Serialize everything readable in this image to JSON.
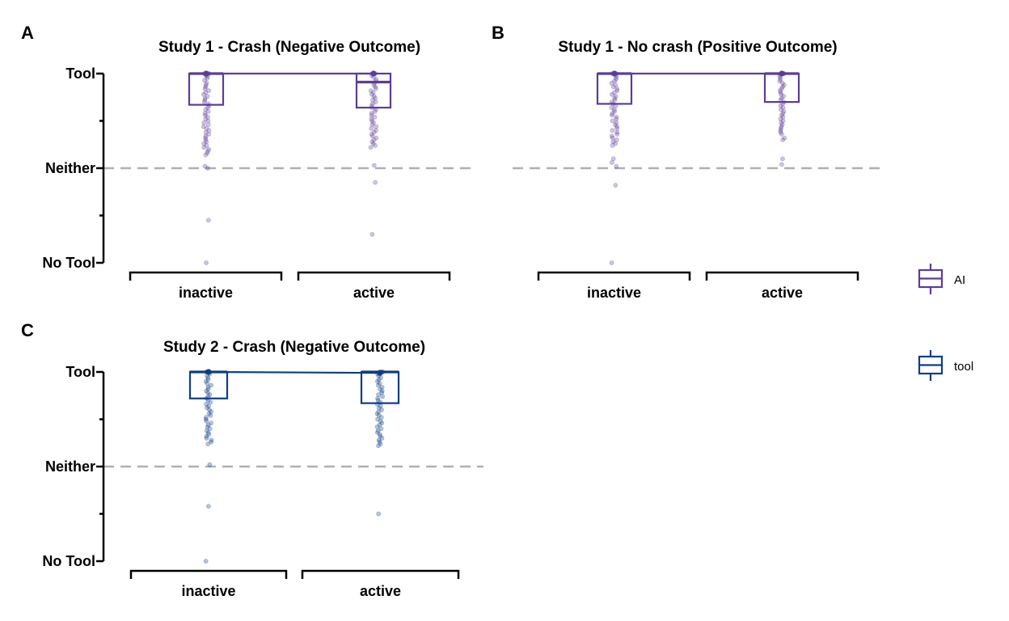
{
  "colors": {
    "AI": "#5B3C99",
    "tool": "#0E3D86",
    "reference": "#B0B0B0",
    "axis": "#000000"
  },
  "legend": [
    {
      "name": "AI",
      "color": "#5B3C99"
    },
    {
      "name": "tool",
      "color": "#0E3D86"
    }
  ],
  "chart_data": [
    {
      "panel": "A",
      "type": "box",
      "title": "Study 1 - Crash (Negative Outcome)",
      "group": "AI",
      "categories": [
        "inactive",
        "active"
      ],
      "y_tick_labels": [
        "No Tool",
        "Neither",
        "Tool"
      ],
      "ylim": [
        -1,
        1
      ],
      "reference_line": 0,
      "boxes": [
        {
          "category": "inactive",
          "q1": 0.67,
          "median": 1.0,
          "q3": 1.0,
          "mean": 1.0
        },
        {
          "category": "active",
          "q1": 0.64,
          "median": 0.91,
          "q3": 1.0,
          "mean": 1.0
        }
      ],
      "points": {
        "inactive": [
          1,
          1,
          1,
          1,
          0.98,
          0.97,
          0.95,
          0.93,
          0.9,
          0.88,
          0.86,
          0.84,
          0.82,
          0.8,
          0.78,
          0.76,
          0.74,
          0.72,
          0.7,
          0.68,
          0.66,
          0.64,
          0.62,
          0.6,
          0.58,
          0.56,
          0.54,
          0.52,
          0.5,
          0.48,
          0.46,
          0.44,
          0.42,
          0.4,
          0.38,
          0.36,
          0.34,
          0.32,
          0.3,
          0.28,
          0.26,
          0.24,
          0.22,
          0.2,
          0.18,
          0.16,
          0.14,
          0.02,
          0,
          -0.55,
          -1
        ],
        "active": [
          1,
          1,
          1,
          1,
          0.98,
          0.96,
          0.94,
          0.92,
          0.9,
          0.88,
          0.86,
          0.84,
          0.82,
          0.8,
          0.78,
          0.76,
          0.74,
          0.72,
          0.7,
          0.68,
          0.66,
          0.64,
          0.62,
          0.6,
          0.58,
          0.56,
          0.54,
          0.52,
          0.5,
          0.48,
          0.46,
          0.44,
          0.42,
          0.4,
          0.38,
          0.36,
          0.34,
          0.32,
          0.3,
          0.28,
          0.26,
          0.24,
          0.22,
          0.03,
          -0.15,
          -0.7
        ]
      }
    },
    {
      "panel": "B",
      "type": "box",
      "title": "Study 1 - No crash (Positive Outcome)",
      "group": "AI",
      "categories": [
        "inactive",
        "active"
      ],
      "y_tick_labels": [],
      "ylim": [
        -1,
        1
      ],
      "reference_line": 0,
      "boxes": [
        {
          "category": "inactive",
          "q1": 0.68,
          "median": 1.0,
          "q3": 1.0,
          "mean": 1.0
        },
        {
          "category": "active",
          "q1": 0.7,
          "median": 1.0,
          "q3": 1.0,
          "mean": 1.0
        }
      ],
      "points": {
        "inactive": [
          1,
          1,
          1,
          1,
          0.98,
          0.96,
          0.94,
          0.92,
          0.9,
          0.88,
          0.86,
          0.84,
          0.82,
          0.8,
          0.78,
          0.76,
          0.74,
          0.72,
          0.7,
          0.68,
          0.66,
          0.64,
          0.62,
          0.6,
          0.58,
          0.56,
          0.54,
          0.52,
          0.5,
          0.48,
          0.46,
          0.44,
          0.42,
          0.4,
          0.38,
          0.36,
          0.34,
          0.32,
          0.3,
          0.28,
          0.26,
          0.24,
          0.1,
          0.06,
          0.02,
          -0.18,
          -1
        ],
        "active": [
          1,
          1,
          1,
          1,
          0.98,
          0.96,
          0.94,
          0.92,
          0.9,
          0.88,
          0.86,
          0.84,
          0.82,
          0.8,
          0.78,
          0.76,
          0.74,
          0.72,
          0.7,
          0.68,
          0.66,
          0.64,
          0.62,
          0.6,
          0.58,
          0.56,
          0.54,
          0.52,
          0.5,
          0.48,
          0.46,
          0.44,
          0.42,
          0.4,
          0.38,
          0.36,
          0.32,
          0.3,
          0.1,
          0.04
        ]
      }
    },
    {
      "panel": "C",
      "type": "box",
      "title": "Study 2 - Crash (Negative Outcome)",
      "group": "tool",
      "categories": [
        "inactive",
        "active"
      ],
      "y_tick_labels": [
        "No Tool",
        "Neither",
        "Tool"
      ],
      "ylim": [
        -1,
        1
      ],
      "reference_line": 0,
      "boxes": [
        {
          "category": "inactive",
          "q1": 0.72,
          "median": 1.0,
          "q3": 1.0,
          "mean": 1.0
        },
        {
          "category": "active",
          "q1": 0.67,
          "median": 1.0,
          "q3": 1.0,
          "mean": 0.99
        }
      ],
      "points": {
        "inactive": [
          1,
          1,
          1,
          1,
          0.98,
          0.96,
          0.94,
          0.92,
          0.9,
          0.88,
          0.86,
          0.84,
          0.82,
          0.8,
          0.78,
          0.76,
          0.74,
          0.72,
          0.7,
          0.68,
          0.66,
          0.64,
          0.62,
          0.6,
          0.58,
          0.56,
          0.54,
          0.52,
          0.5,
          0.48,
          0.46,
          0.44,
          0.42,
          0.4,
          0.38,
          0.36,
          0.34,
          0.32,
          0.3,
          0.28,
          0.26,
          0.24,
          0.02,
          -0.42,
          -1
        ],
        "active": [
          1,
          1,
          1,
          1,
          0.98,
          0.96,
          0.94,
          0.92,
          0.9,
          0.88,
          0.86,
          0.84,
          0.82,
          0.8,
          0.78,
          0.76,
          0.74,
          0.72,
          0.7,
          0.68,
          0.66,
          0.64,
          0.62,
          0.6,
          0.58,
          0.56,
          0.54,
          0.52,
          0.5,
          0.48,
          0.46,
          0.44,
          0.42,
          0.4,
          0.38,
          0.36,
          0.34,
          0.32,
          0.3,
          0.28,
          0.26,
          0.24,
          0.22,
          -0.5
        ]
      }
    }
  ]
}
